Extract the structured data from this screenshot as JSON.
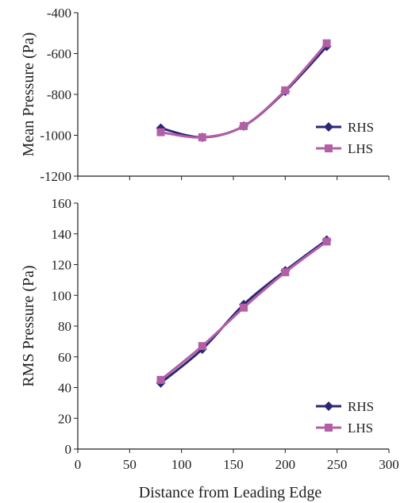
{
  "chart_data": [
    {
      "type": "line",
      "title": "",
      "xlabel": "",
      "ylabel": "Mean Pressure (Pa)",
      "xlim": [
        0,
        300
      ],
      "ylim": [
        -1200,
        -400
      ],
      "yticks": [
        -400,
        -600,
        -800,
        -1000,
        -1200
      ],
      "grid": false,
      "legend_position": "bottom-right",
      "series": [
        {
          "name": "RHS",
          "color": "#2b2776",
          "marker": "diamond",
          "x": [
            80,
            120,
            160,
            200,
            240
          ],
          "y": [
            -965,
            -1010,
            -955,
            -785,
            -565
          ]
        },
        {
          "name": "LHS",
          "color": "#b35fa6",
          "marker": "square",
          "x": [
            80,
            120,
            160,
            200,
            240
          ],
          "y": [
            -985,
            -1010,
            -955,
            -780,
            -550
          ]
        }
      ]
    },
    {
      "type": "line",
      "title": "",
      "xlabel": "Distance from Leading Edge",
      "ylabel": "RMS Pressure (Pa)",
      "xlim": [
        0,
        300
      ],
      "ylim": [
        0,
        160
      ],
      "xticks": [
        0,
        50,
        100,
        150,
        200,
        250,
        300
      ],
      "yticks": [
        0,
        20,
        40,
        60,
        80,
        100,
        120,
        140,
        160
      ],
      "grid": false,
      "legend_position": "bottom-right",
      "series": [
        {
          "name": "RHS",
          "color": "#2b2776",
          "marker": "diamond",
          "x": [
            80,
            120,
            160,
            200,
            240
          ],
          "y": [
            43,
            65,
            94,
            116,
            136
          ]
        },
        {
          "name": "LHS",
          "color": "#b35fa6",
          "marker": "square",
          "x": [
            80,
            120,
            160,
            200,
            240
          ],
          "y": [
            45,
            67,
            92,
            115,
            135
          ]
        }
      ]
    }
  ]
}
